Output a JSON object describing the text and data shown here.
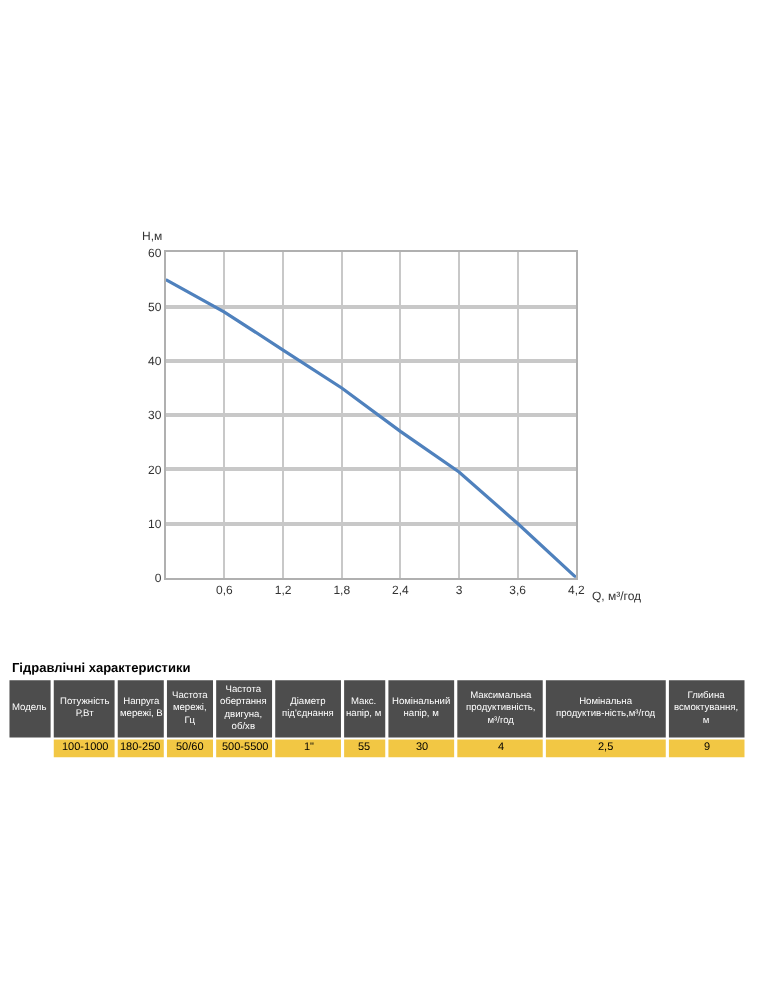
{
  "chart_data": [
    {
      "type": "line",
      "xlabel": "Q, м³/год",
      "ylabel": "Н,м",
      "x": [
        0,
        0.6,
        1.2,
        1.8,
        2.4,
        3,
        3.6,
        4.2
      ],
      "series": [
        {
          "color": "#4f81bd",
          "values": [
            55,
            49,
            42,
            35,
            27,
            19.5,
            10,
            0
          ]
        }
      ],
      "xlim": [
        0,
        4.2
      ],
      "xticks": [
        {
          "value": 0.6,
          "label": "0,6"
        },
        {
          "value": 1.2,
          "label": "1,2"
        },
        {
          "value": 1.8,
          "label": "1,8"
        },
        {
          "value": 2.4,
          "label": "2,4"
        },
        3,
        {
          "value": 3.6,
          "label": "3,6"
        },
        {
          "value": 4.2,
          "label": "4,2"
        }
      ],
      "ylim": [
        0,
        60
      ],
      "yticks": [
        0,
        10,
        20,
        30,
        40,
        50,
        60
      ],
      "grid": true,
      "marker": "none",
      "line_style": "solid"
    },
    {
      "type": "other",
      "title": "Гідравлічні характеристики",
      "categories": [
        "Модель",
        "Потужність Р,Вт",
        "Напруга мережі, В",
        "Частота мережі, Гц",
        "Частота обертання двигуна, об/хв",
        "Діаметр під'єднання",
        "Макс. напір, м",
        "Номінальний напір, м",
        "Максимальна продуктивність, м³/год",
        "Номінальна продуктив-ність,м³/год",
        "Глибина всмоктування, м"
      ],
      "value_labels": [
        null,
        "100-1000",
        "180-250",
        "50/60",
        "500-5500",
        "1\"",
        "55",
        "30",
        "4",
        "2,5",
        "9"
      ]
    }
  ]
}
